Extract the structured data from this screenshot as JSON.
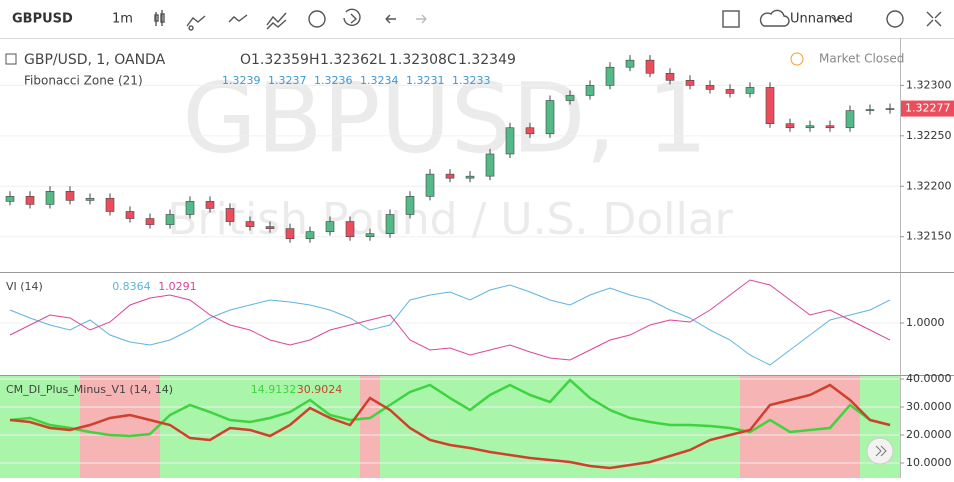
{
  "toolbar": {
    "symbol": "GBPUSD",
    "interval": "1m",
    "layout_name": "Unnamed"
  },
  "legend": {
    "instrument": "GBP/USD, 1, OANDA",
    "ohlc": [
      {
        "label": "O",
        "value": "1.32359"
      },
      {
        "label": "H",
        "value": "1.32362"
      },
      {
        "label": "L",
        "value": "1.32308"
      },
      {
        "label": "C",
        "value": "1.32349"
      }
    ],
    "indicator": "Fibonacci Zone (21)",
    "indicator_values": [
      "1.3239",
      "1.3237",
      "1.3236",
      "1.3234",
      "1.3231",
      "1.3233"
    ],
    "status": "Market Closed"
  },
  "watermark": {
    "title": "GBPUSD, 1",
    "subtitle": "British Pound / U.S. Dollar"
  },
  "chart_data": [
    {
      "type": "candlestick",
      "up_color": "#53b987",
      "down_color": "#eb4d5c",
      "open": [
        1.32185,
        1.3219,
        1.32182,
        1.32195,
        1.32186,
        1.32188,
        1.32175,
        1.32168,
        1.32162,
        1.32172,
        1.32185,
        1.32178,
        1.32165,
        1.3216,
        1.32158,
        1.32148,
        1.32155,
        1.32165,
        1.3215,
        1.32153,
        1.32172,
        1.3219,
        1.32212,
        1.32208,
        1.3221,
        1.32232,
        1.32258,
        1.32252,
        1.32285,
        1.3229,
        1.323,
        1.32318,
        1.32325,
        1.32312,
        1.32305,
        1.323,
        1.32296,
        1.32292,
        1.32298,
        1.32262,
        1.32258,
        1.3226,
        1.32258,
        1.32275,
        1.32276
      ],
      "high": [
        1.32195,
        1.32195,
        1.322,
        1.322,
        1.32193,
        1.32193,
        1.3218,
        1.32173,
        1.32177,
        1.3219,
        1.3219,
        1.32183,
        1.3217,
        1.32165,
        1.32163,
        1.3216,
        1.3217,
        1.3217,
        1.32158,
        1.32177,
        1.32195,
        1.32217,
        1.32217,
        1.32215,
        1.32237,
        1.32263,
        1.32263,
        1.3229,
        1.32295,
        1.32305,
        1.32323,
        1.3233,
        1.3233,
        1.32317,
        1.3231,
        1.32305,
        1.32301,
        1.32303,
        1.32303,
        1.32267,
        1.32265,
        1.32265,
        1.3228,
        1.32281,
        1.32282
      ],
      "low": [
        1.32181,
        1.32178,
        1.32178,
        1.32182,
        1.32182,
        1.32171,
        1.32164,
        1.32158,
        1.32158,
        1.32168,
        1.32174,
        1.32161,
        1.32156,
        1.32154,
        1.32144,
        1.32144,
        1.32151,
        1.32146,
        1.32146,
        1.32149,
        1.32168,
        1.32186,
        1.32204,
        1.32204,
        1.32206,
        1.32228,
        1.32248,
        1.32248,
        1.32281,
        1.32286,
        1.32296,
        1.32314,
        1.32308,
        1.32301,
        1.32296,
        1.32292,
        1.32288,
        1.32288,
        1.32258,
        1.32254,
        1.32254,
        1.32254,
        1.32254,
        1.32271,
        1.32272
      ],
      "close": [
        1.3219,
        1.32182,
        1.32195,
        1.32186,
        1.32188,
        1.32175,
        1.32168,
        1.32162,
        1.32172,
        1.32185,
        1.32178,
        1.32165,
        1.3216,
        1.32158,
        1.32148,
        1.32155,
        1.32165,
        1.3215,
        1.32153,
        1.32172,
        1.3219,
        1.32212,
        1.32208,
        1.3221,
        1.32232,
        1.32258,
        1.32252,
        1.32285,
        1.3229,
        1.323,
        1.32318,
        1.32325,
        1.32312,
        1.32305,
        1.323,
        1.32296,
        1.32292,
        1.32298,
        1.32262,
        1.32258,
        1.3226,
        1.32258,
        1.32275,
        1.32276,
        1.32277
      ],
      "ylim": [
        1.32115,
        1.32343
      ],
      "yticks": [
        {
          "value": 1.3215,
          "label": "1.32150"
        },
        {
          "value": 1.322,
          "label": "1.32200"
        },
        {
          "value": 1.3225,
          "label": "1.32250"
        },
        {
          "value": 1.323,
          "label": "1.32300"
        }
      ]
    },
    {
      "type": "line",
      "title": "VI (14)",
      "series": [
        {
          "color": "#5fb4e0",
          "legend_value": "0.8364",
          "values": [
            1.052,
            1.02,
            0.992,
            0.972,
            1.012,
            0.952,
            0.924,
            0.912,
            0.932,
            0.972,
            1.02,
            1.052,
            1.072,
            1.092,
            1.084,
            1.072,
            1.052,
            1.02,
            0.972,
            0.992,
            1.092,
            1.112,
            1.124,
            1.092,
            1.132,
            1.152,
            1.124,
            1.092,
            1.072,
            1.112,
            1.14,
            1.112,
            1.092,
            1.052,
            1.02,
            0.972,
            0.932,
            0.872,
            0.832,
            0.892,
            0.952,
            1.012,
            1.032,
            1.052,
            1.092
          ]
        },
        {
          "color": "#d9459b",
          "legend_value": "1.0291",
          "values": [
            0.952,
            0.992,
            1.032,
            1.02,
            0.972,
            1.004,
            1.072,
            1.1,
            1.112,
            1.092,
            1.032,
            0.992,
            0.972,
            0.932,
            0.912,
            0.932,
            0.972,
            0.992,
            1.012,
            1.032,
            0.932,
            0.892,
            0.9,
            0.872,
            0.892,
            0.912,
            0.884,
            0.86,
            0.852,
            0.892,
            0.932,
            0.952,
            0.992,
            1.012,
            1.004,
            1.052,
            1.112,
            1.172,
            1.152,
            1.092,
            1.032,
            1.052,
            1.012,
            0.972,
            0.932
          ]
        }
      ],
      "ylim": [
        0.792,
        1.204
      ],
      "yticks": [
        {
          "value": 1,
          "label": "1.0000"
        }
      ]
    },
    {
      "type": "line",
      "title": "CM_DI_Plus_Minus_V1 (14, 14)",
      "background": true,
      "series": [
        {
          "color": "#3fd33f",
          "legend_value": "14.9132",
          "values": [
            25.36,
            26.07,
            23.57,
            22.5,
            21.07,
            20.0,
            19.64,
            20.36,
            27.14,
            30.71,
            28.21,
            25.36,
            24.64,
            26.07,
            28.21,
            32.5,
            27.14,
            25.36,
            26.07,
            30.71,
            35.36,
            37.86,
            33.21,
            28.93,
            34.29,
            37.86,
            34.29,
            31.79,
            39.64,
            33.21,
            28.93,
            26.07,
            24.64,
            23.57,
            23.57,
            23.21,
            22.5,
            21.07,
            25.36,
            21.07,
            21.79,
            22.5,
            30.71,
            25.36,
            23.57
          ]
        },
        {
          "color": "#d0402c",
          "legend_value": "30.9024",
          "values": [
            25.36,
            24.64,
            22.5,
            21.79,
            23.57,
            26.07,
            27.14,
            25.36,
            23.57,
            18.93,
            18.21,
            22.5,
            21.79,
            19.64,
            23.57,
            29.64,
            26.07,
            23.57,
            33.21,
            28.93,
            22.5,
            18.21,
            16.43,
            15.36,
            13.93,
            12.86,
            11.79,
            11.07,
            10.36,
            8.93,
            8.21,
            9.29,
            10.36,
            12.5,
            14.64,
            18.21,
            20.0,
            21.79,
            30.71,
            32.5,
            34.29,
            37.86,
            32.5,
            25.36,
            23.57
          ]
        }
      ],
      "ylim": [
        4.64,
        41.43
      ],
      "yticks": [
        {
          "value": 10,
          "label": "10.0000"
        },
        {
          "value": 20,
          "label": "20.0000"
        },
        {
          "value": 30,
          "label": "30.0000"
        },
        {
          "value": 40,
          "label": "40.0000"
        }
      ]
    }
  ]
}
